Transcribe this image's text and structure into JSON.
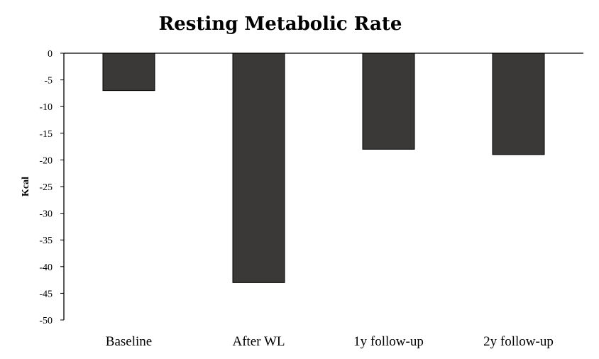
{
  "chart_data": {
    "type": "bar",
    "title": "Resting Metabolic Rate",
    "xlabel": "",
    "ylabel": "Kcal",
    "categories": [
      "Baseline",
      "After WL",
      "1y follow-up",
      "2y follow-up"
    ],
    "values": [
      -7,
      -43,
      -18,
      -19
    ],
    "ylim": [
      -50,
      0
    ],
    "yticks": [
      0,
      -5,
      -10,
      -15,
      -20,
      -25,
      -30,
      -35,
      -40,
      -45,
      -50
    ],
    "bar_color": "#3a3937",
    "grid": false,
    "legend": "none"
  }
}
